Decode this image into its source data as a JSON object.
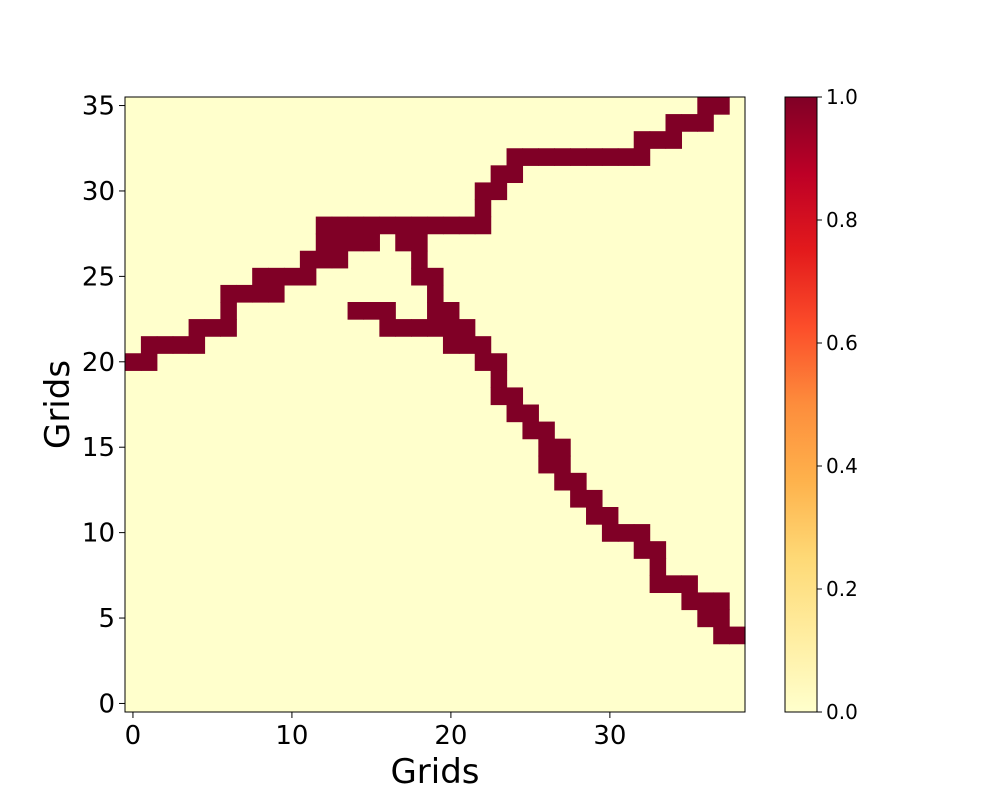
{
  "chart_data": {
    "type": "heatmap",
    "xlabel": "Grids",
    "ylabel": "Grids",
    "xlim": [
      -0.5,
      38.5
    ],
    "ylim": [
      -0.5,
      35.5
    ],
    "x_ticks": [
      0,
      10,
      20,
      30
    ],
    "y_ticks": [
      0,
      5,
      10,
      15,
      20,
      25,
      30,
      35
    ],
    "grid": false,
    "colorbar": {
      "min": 0.0,
      "max": 1.0,
      "ticks": [
        "0.0",
        "0.2",
        "0.4",
        "0.6",
        "0.8",
        "1.0"
      ],
      "colormap": "YlOrRd",
      "colors": [
        "#ffffcc",
        "#ffeda0",
        "#fed976",
        "#feb24c",
        "#fd8d3c",
        "#fc4e2a",
        "#e31a1c",
        "#bd0026",
        "#800026"
      ]
    },
    "background_value": 0.0,
    "cell_value": 1.0,
    "cells": [
      [
        0,
        20
      ],
      [
        1,
        20
      ],
      [
        1,
        21
      ],
      [
        2,
        21
      ],
      [
        3,
        21
      ],
      [
        4,
        21
      ],
      [
        4,
        22
      ],
      [
        5,
        22
      ],
      [
        6,
        22
      ],
      [
        6,
        23
      ],
      [
        6,
        24
      ],
      [
        7,
        24
      ],
      [
        8,
        24
      ],
      [
        8,
        25
      ],
      [
        9,
        24
      ],
      [
        9,
        25
      ],
      [
        10,
        25
      ],
      [
        11,
        25
      ],
      [
        11,
        26
      ],
      [
        12,
        26
      ],
      [
        12,
        27
      ],
      [
        12,
        28
      ],
      [
        13,
        26
      ],
      [
        13,
        27
      ],
      [
        13,
        28
      ],
      [
        14,
        27
      ],
      [
        14,
        28
      ],
      [
        15,
        27
      ],
      [
        15,
        28
      ],
      [
        16,
        28
      ],
      [
        17,
        27
      ],
      [
        17,
        28
      ],
      [
        18,
        27
      ],
      [
        18,
        28
      ],
      [
        18,
        26
      ],
      [
        18,
        25
      ],
      [
        19,
        28
      ],
      [
        19,
        25
      ],
      [
        19,
        24
      ],
      [
        19,
        23
      ],
      [
        20,
        28
      ],
      [
        21,
        28
      ],
      [
        22,
        28
      ],
      [
        22,
        29
      ],
      [
        22,
        30
      ],
      [
        23,
        30
      ],
      [
        23,
        31
      ],
      [
        24,
        31
      ],
      [
        24,
        32
      ],
      [
        25,
        32
      ],
      [
        26,
        32
      ],
      [
        27,
        32
      ],
      [
        28,
        32
      ],
      [
        29,
        32
      ],
      [
        30,
        32
      ],
      [
        31,
        32
      ],
      [
        32,
        32
      ],
      [
        32,
        33
      ],
      [
        33,
        33
      ],
      [
        34,
        33
      ],
      [
        34,
        34
      ],
      [
        35,
        34
      ],
      [
        36,
        34
      ],
      [
        36,
        35
      ],
      [
        37,
        35
      ],
      [
        14,
        23
      ],
      [
        15,
        23
      ],
      [
        16,
        23
      ],
      [
        16,
        22
      ],
      [
        17,
        22
      ],
      [
        18,
        22
      ],
      [
        19,
        22
      ],
      [
        20,
        22
      ],
      [
        20,
        23
      ],
      [
        20,
        21
      ],
      [
        21,
        22
      ],
      [
        21,
        21
      ],
      [
        22,
        21
      ],
      [
        22,
        20
      ],
      [
        23,
        20
      ],
      [
        23,
        19
      ],
      [
        23,
        18
      ],
      [
        24,
        18
      ],
      [
        24,
        17
      ],
      [
        25,
        17
      ],
      [
        25,
        16
      ],
      [
        26,
        16
      ],
      [
        26,
        15
      ],
      [
        26,
        14
      ],
      [
        27,
        15
      ],
      [
        27,
        14
      ],
      [
        27,
        13
      ],
      [
        28,
        13
      ],
      [
        28,
        12
      ],
      [
        29,
        12
      ],
      [
        29,
        11
      ],
      [
        30,
        11
      ],
      [
        30,
        10
      ],
      [
        31,
        10
      ],
      [
        32,
        10
      ],
      [
        32,
        9
      ],
      [
        33,
        9
      ],
      [
        33,
        8
      ],
      [
        33,
        7
      ],
      [
        34,
        7
      ],
      [
        35,
        7
      ],
      [
        35,
        6
      ],
      [
        36,
        6
      ],
      [
        36,
        5
      ],
      [
        37,
        6
      ],
      [
        37,
        5
      ],
      [
        37,
        4
      ],
      [
        38,
        4
      ]
    ]
  }
}
